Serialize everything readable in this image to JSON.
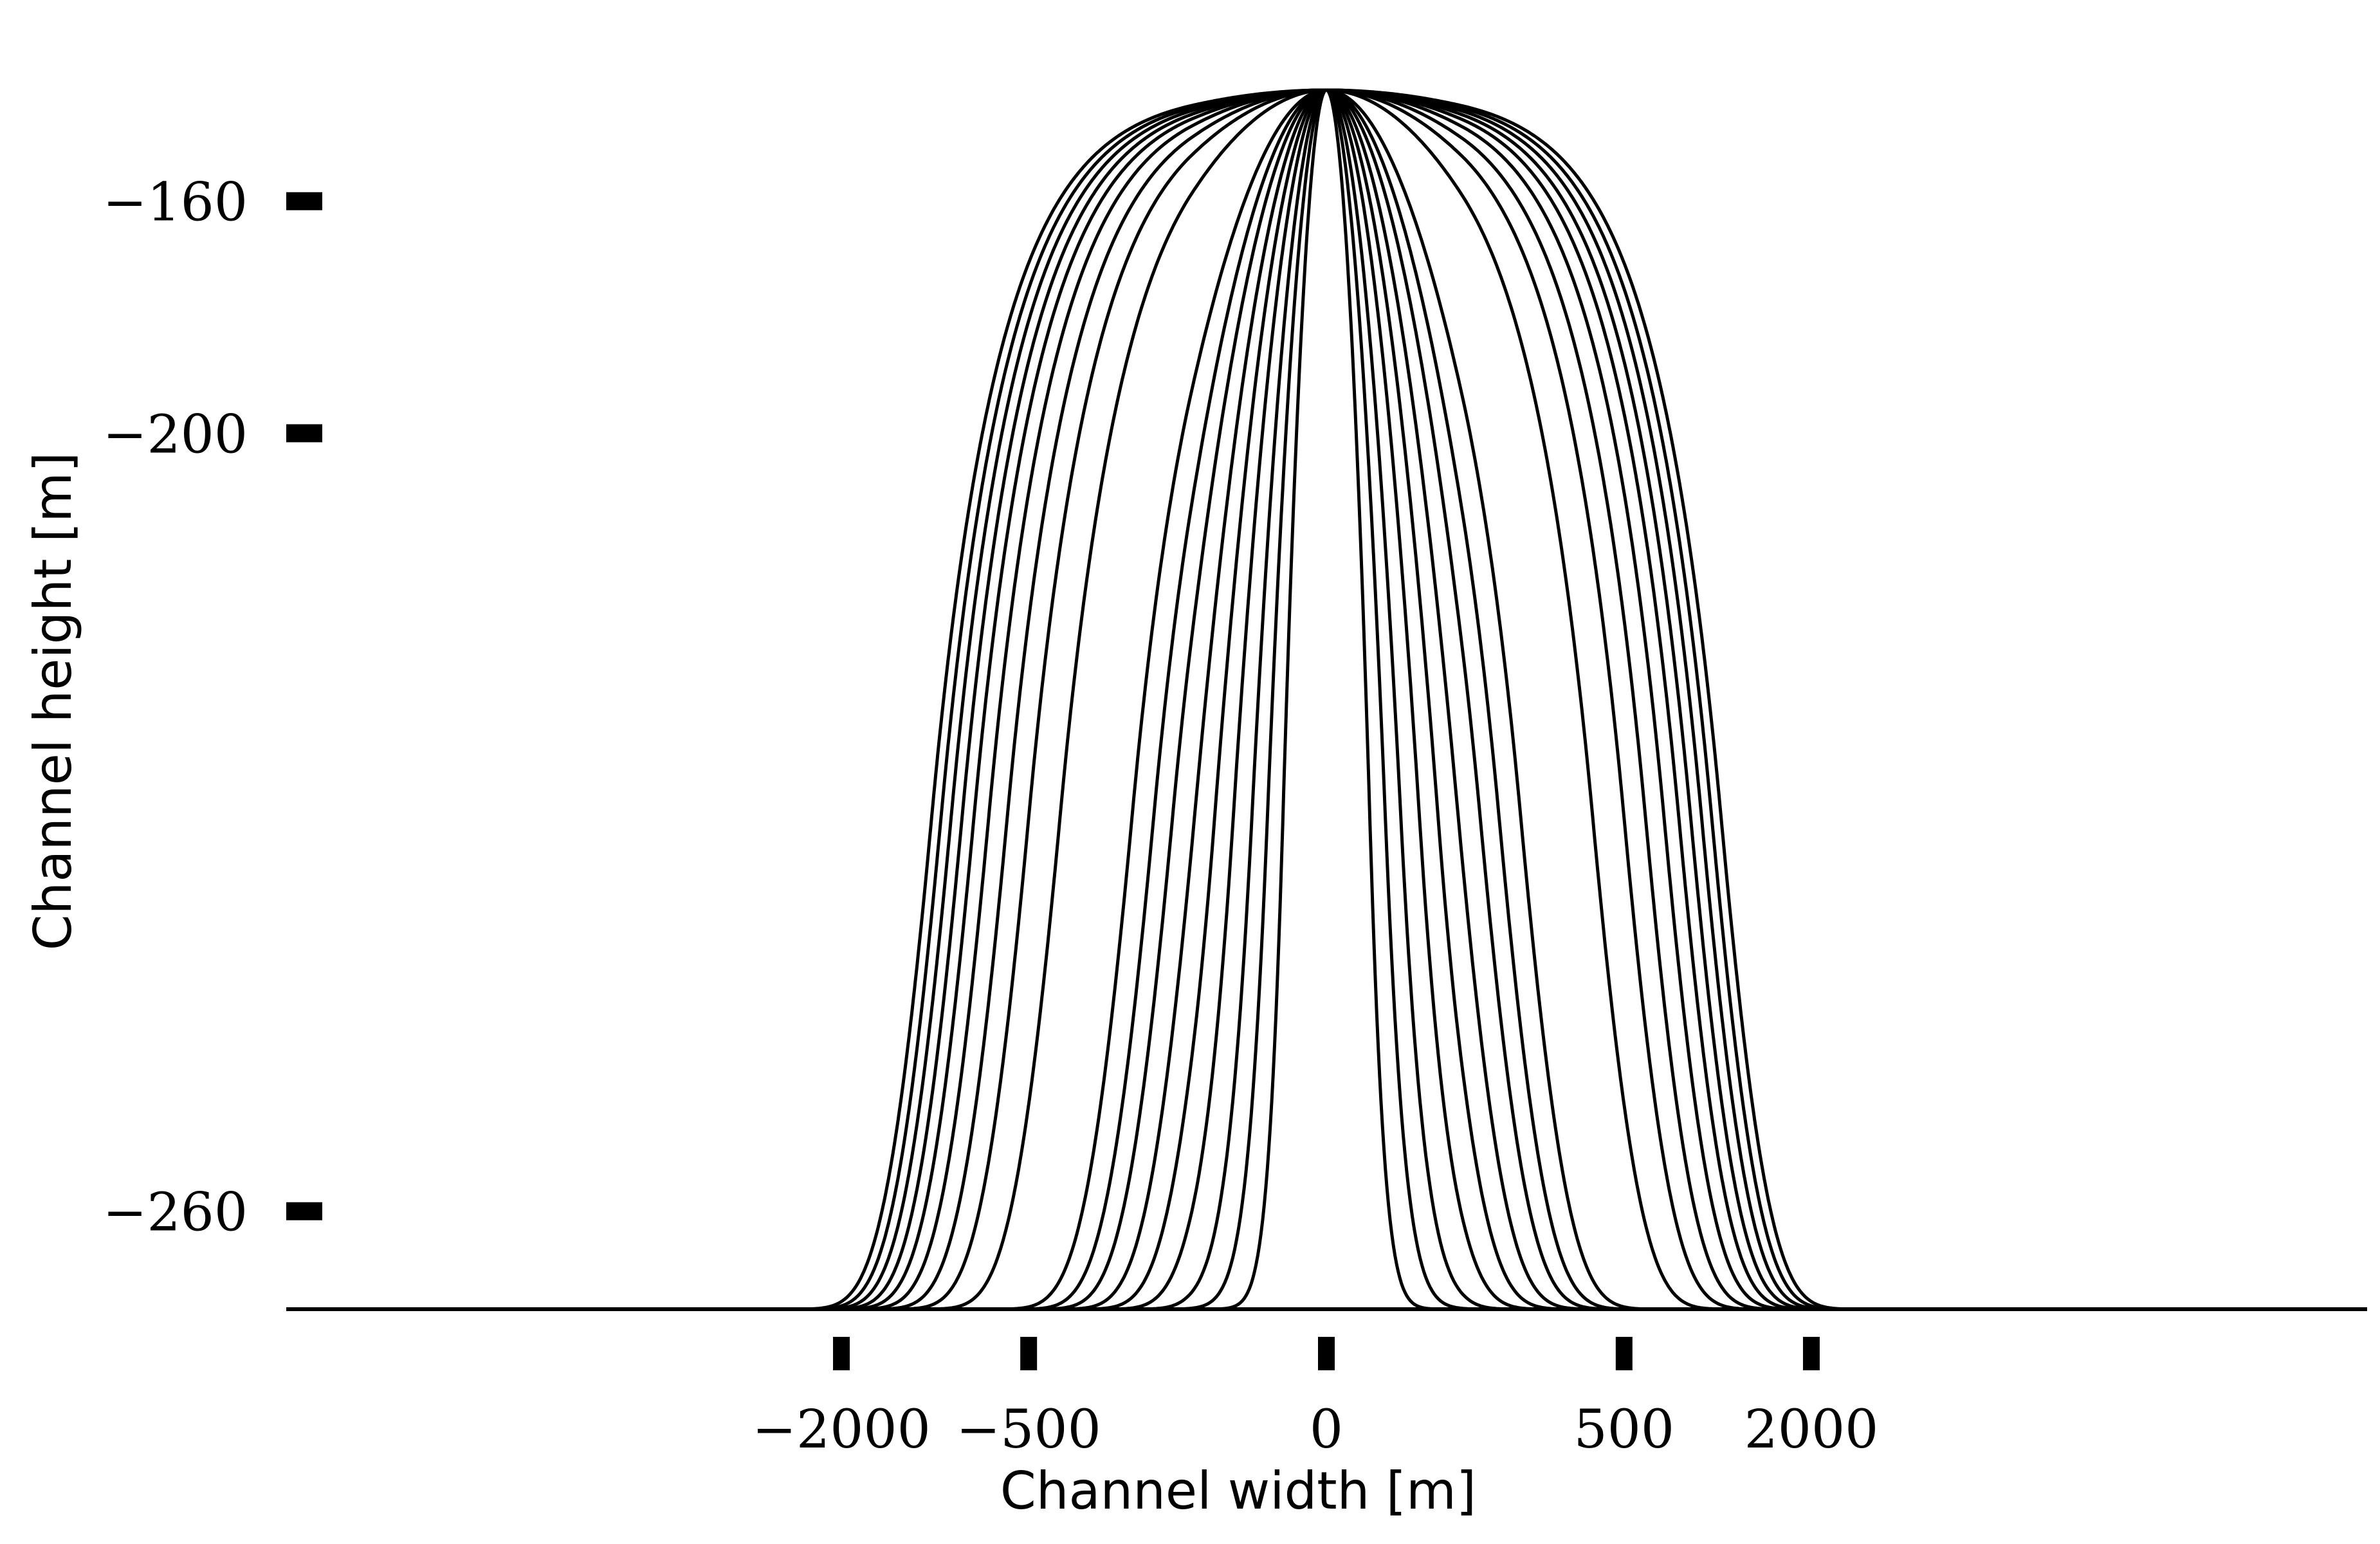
{
  "chart_data": {
    "type": "line",
    "title": "",
    "xlabel": "Channel width [m]",
    "ylabel": "Channel height [m]",
    "x_ticks": [
      {
        "value": -2000,
        "label": "−2000"
      },
      {
        "value": -500,
        "label": "−500"
      },
      {
        "value": 0,
        "label": "0"
      },
      {
        "value": 500,
        "label": "500"
      },
      {
        "value": 2000,
        "label": "2000"
      }
    ],
    "y_ticks": [
      {
        "value": -160,
        "label": "−160"
      },
      {
        "value": -200,
        "label": "−200"
      },
      {
        "value": -260,
        "label": "−260"
      }
    ],
    "x_axis_ticks": [
      -2000,
      -500,
      0,
      500,
      2000
    ],
    "y_axis_ticks": [
      -160,
      -200,
      -260
    ],
    "xlim": [
      -2500,
      2500
    ],
    "ylim": [
      -266,
      -133
    ],
    "baseline": -266,
    "peak": -133,
    "x_scale": "symlog",
    "y_scale": "symlog",
    "grid": false,
    "legend": "none",
    "line_color": "#000000",
    "series": [
      {
        "sigma": 28
      },
      {
        "sigma": 38
      },
      {
        "sigma": 48
      },
      {
        "sigma": 60
      },
      {
        "sigma": 72
      },
      {
        "sigma": 85
      },
      {
        "sigma": 100
      },
      {
        "sigma": 115
      },
      {
        "sigma": 135
      },
      {
        "sigma": 230
      },
      {
        "sigma": 290
      },
      {
        "sigma": 340
      },
      {
        "sigma": 390
      },
      {
        "sigma": 435
      },
      {
        "sigma": 475
      },
      {
        "sigma": 515
      },
      {
        "sigma": 555
      },
      {
        "sigma": 595
      }
    ]
  }
}
